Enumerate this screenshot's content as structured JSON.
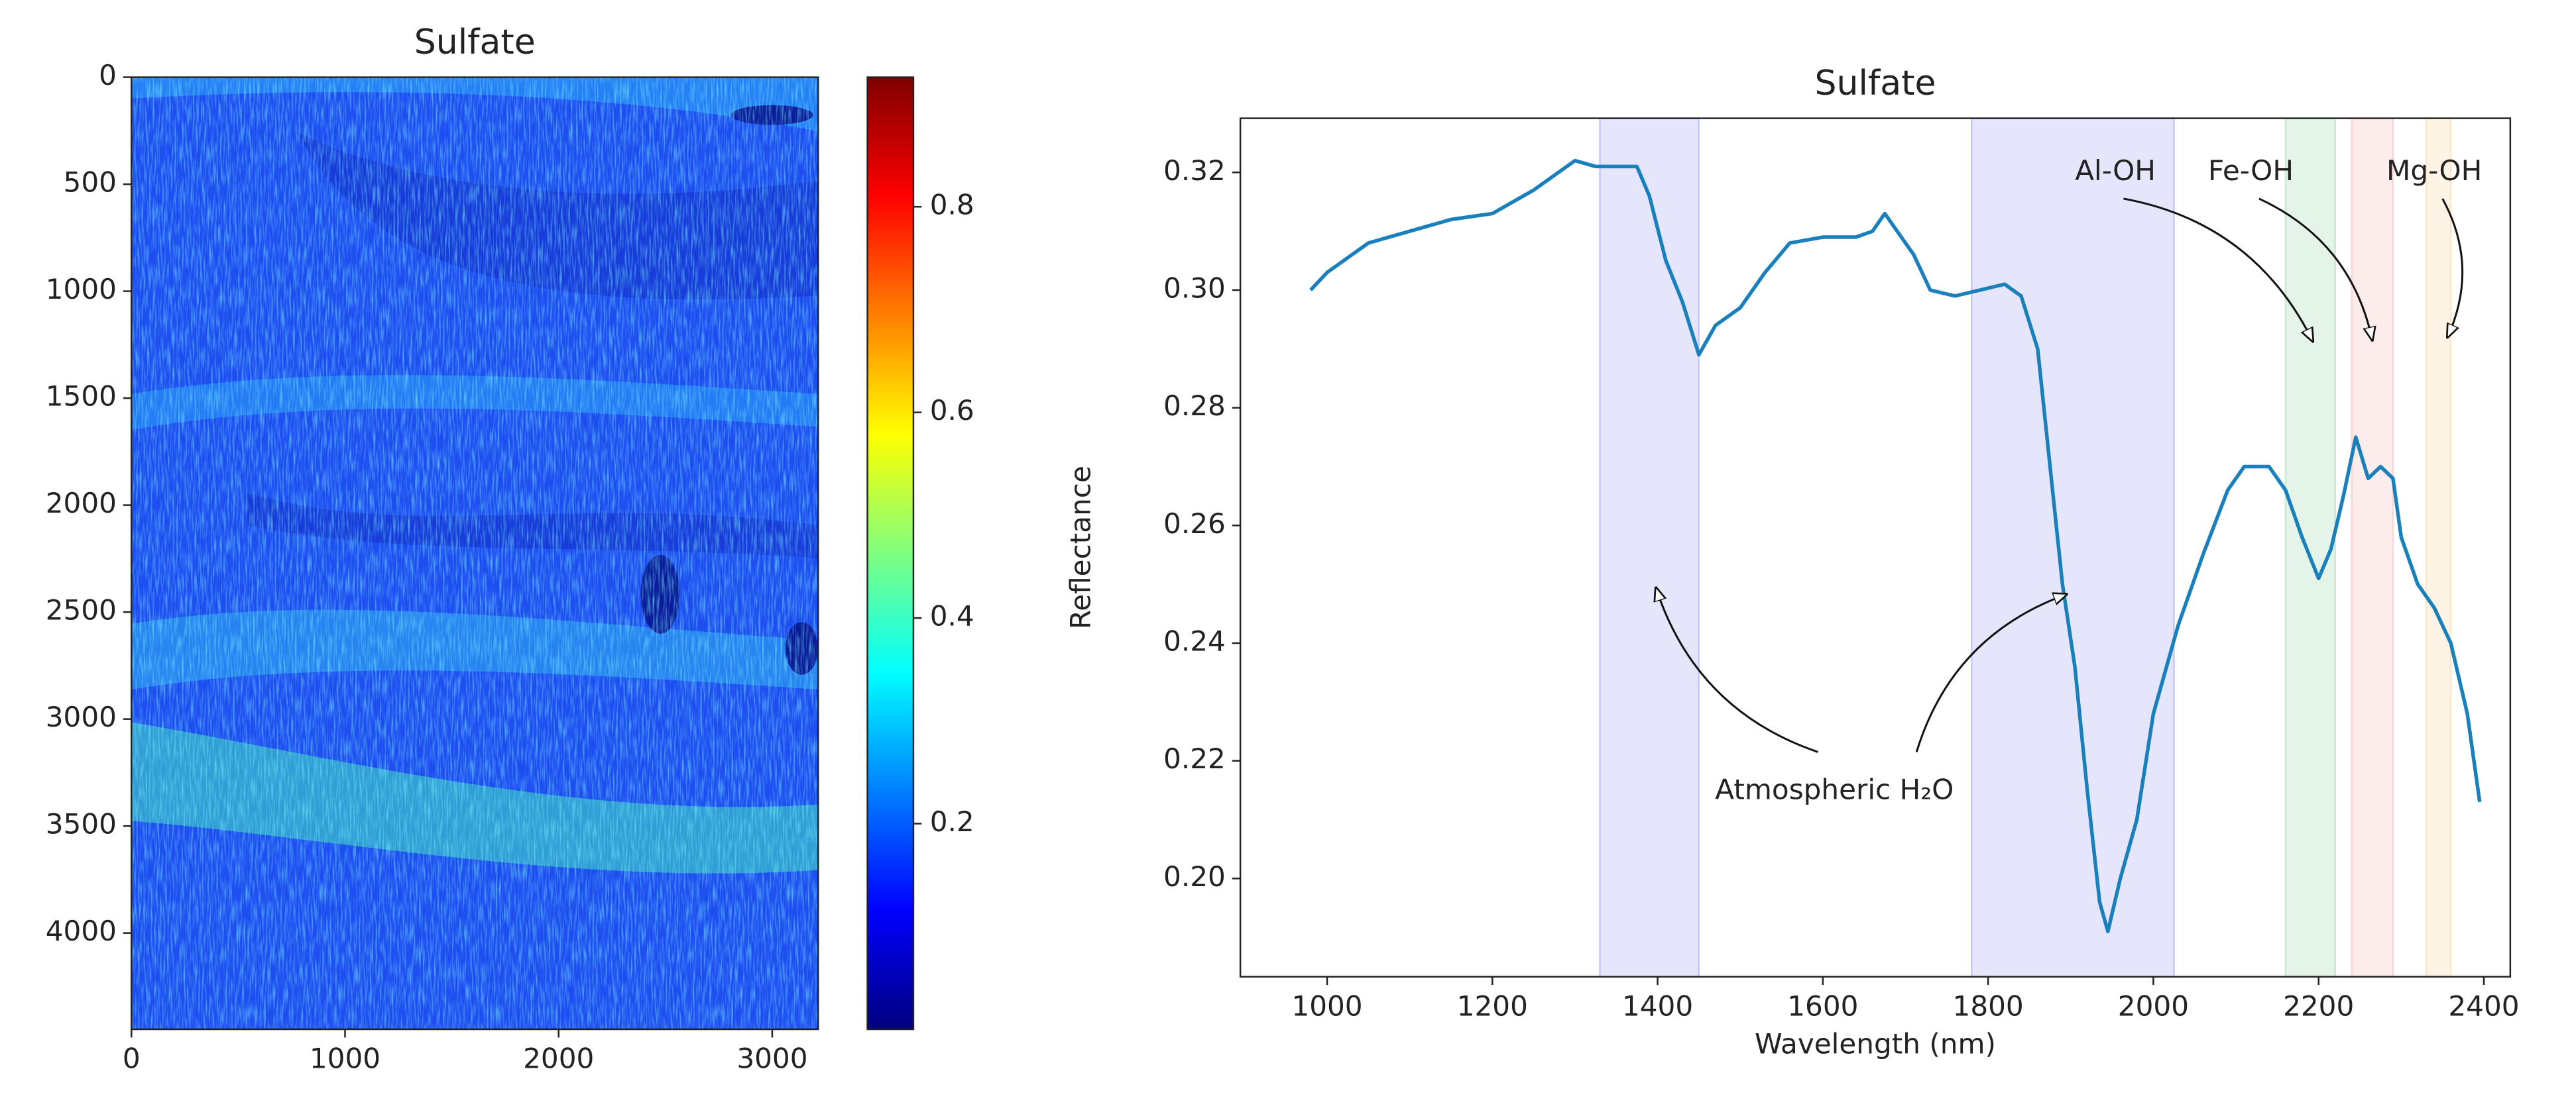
{
  "chart_data": [
    {
      "type": "heatmap",
      "title": "Sulfate",
      "xlim": [
        0,
        3215
      ],
      "ylim": [
        4450,
        0
      ],
      "xticks": [
        0,
        1000,
        2000,
        3000
      ],
      "yticks": [
        0,
        500,
        1000,
        1500,
        2000,
        2500,
        3000,
        3500,
        4000
      ],
      "colorbar": {
        "lim": [
          0,
          0.926
        ],
        "ticks": [
          0.2,
          0.4,
          0.6,
          0.8
        ],
        "colors": [
          "#00007f",
          "#0000ff",
          "#007fff",
          "#00ffff",
          "#7fff7f",
          "#ffff00",
          "#ff7f00",
          "#ff0000",
          "#7f0000"
        ]
      }
    },
    {
      "type": "line",
      "title": "Sulfate",
      "xlabel": "Wavelength (nm)",
      "ylabel": "Reflectance",
      "xlim": [
        895,
        2432
      ],
      "ylim": [
        0.1833,
        0.3292
      ],
      "xticks": [
        1000,
        1200,
        1400,
        1600,
        1800,
        2000,
        2200,
        2400
      ],
      "yticks": [
        {
          "value": 0.2,
          "label": "0.20"
        },
        {
          "value": 0.22,
          "label": "0.22"
        },
        {
          "value": 0.24,
          "label": "0.24"
        },
        {
          "value": 0.26,
          "label": "0.26"
        },
        {
          "value": 0.28,
          "label": "0.28"
        },
        {
          "value": 0.3,
          "label": "0.30"
        },
        {
          "value": 0.32,
          "label": "0.32"
        }
      ],
      "bands": [
        {
          "range": [
            1330,
            1450
          ],
          "color": "#7b7bf0"
        },
        {
          "range": [
            1780,
            2025
          ],
          "color": "#7b7bf0"
        },
        {
          "range": [
            2160,
            2220
          ],
          "color": "#7fc98a"
        },
        {
          "range": [
            2240,
            2290
          ],
          "color": "#f0a0a0"
        },
        {
          "range": [
            2330,
            2360
          ],
          "color": "#f8c880"
        }
      ],
      "annotations": [
        {
          "text": "Al-OH",
          "xytext": [
            1954,
            0.32
          ],
          "xy": [
            [
              2193,
              0.2913
            ]
          ]
        },
        {
          "text": "Fe-OH",
          "xytext": [
            2118,
            0.32
          ],
          "xy": [
            [
              2265,
              0.2915
            ]
          ]
        },
        {
          "text": "Mg-OH",
          "xytext": [
            2340,
            0.32
          ],
          "xy": [
            [
              2356,
              0.292
            ]
          ]
        },
        {
          "text": "Atmospheric H₂O",
          "xytext": [
            1614,
            0.2148
          ],
          "xy": [
            [
              1398,
              0.2494
            ],
            [
              1895,
              0.2483
            ]
          ]
        }
      ],
      "series": [
        {
          "name": "Sulfate",
          "color": "#1a80bb",
          "x": [
            980,
            1000,
            1050,
            1100,
            1150,
            1200,
            1250,
            1300,
            1325,
            1350,
            1375,
            1390,
            1410,
            1430,
            1450,
            1470,
            1500,
            1530,
            1560,
            1600,
            1640,
            1660,
            1675,
            1690,
            1710,
            1730,
            1760,
            1790,
            1820,
            1840,
            1860,
            1875,
            1890,
            1905,
            1920,
            1935,
            1945,
            1960,
            1980,
            2000,
            2030,
            2060,
            2090,
            2110,
            2140,
            2160,
            2180,
            2200,
            2215,
            2230,
            2245,
            2260,
            2275,
            2290,
            2300,
            2320,
            2340,
            2360,
            2380,
            2395
          ],
          "values": [
            0.3,
            0.303,
            0.308,
            0.31,
            0.312,
            0.313,
            0.317,
            0.322,
            0.321,
            0.321,
            0.321,
            0.316,
            0.305,
            0.298,
            0.289,
            0.294,
            0.297,
            0.303,
            0.308,
            0.309,
            0.309,
            0.31,
            0.313,
            0.31,
            0.306,
            0.3,
            0.299,
            0.3,
            0.301,
            0.299,
            0.29,
            0.27,
            0.25,
            0.236,
            0.215,
            0.196,
            0.191,
            0.2,
            0.21,
            0.228,
            0.243,
            0.255,
            0.266,
            0.27,
            0.27,
            0.266,
            0.258,
            0.251,
            0.256,
            0.265,
            0.275,
            0.268,
            0.27,
            0.268,
            0.258,
            0.25,
            0.246,
            0.24,
            0.228,
            0.213
          ]
        }
      ]
    }
  ]
}
